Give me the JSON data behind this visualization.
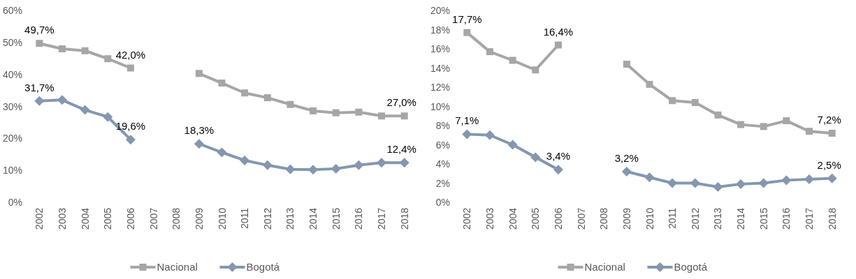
{
  "chart_data": [
    {
      "type": "line",
      "categories": [
        "2002",
        "2003",
        "2004",
        "2005",
        "2006",
        "2007",
        "2008",
        "2009",
        "2010",
        "2011",
        "2012",
        "2013",
        "2014",
        "2015",
        "2016",
        "2017",
        "2018"
      ],
      "ylim": [
        0,
        60
      ],
      "yticks": [
        {
          "value": 0,
          "label": "0%"
        },
        {
          "value": 10,
          "label": "10%"
        },
        {
          "value": 20,
          "label": "20%"
        },
        {
          "value": 30,
          "label": "30%"
        },
        {
          "value": 40,
          "label": "40%"
        },
        {
          "value": 50,
          "label": "50%"
        },
        {
          "value": 60,
          "label": "60%"
        }
      ],
      "legend": "bottom",
      "line_style": "solid",
      "series": [
        {
          "name": "Nacional",
          "color": "#a6a6a6",
          "marker": "square",
          "values": [
            49.7,
            48.0,
            47.4,
            44.9,
            42.0,
            null,
            null,
            40.3,
            37.3,
            34.2,
            32.7,
            30.6,
            28.6,
            28.0,
            28.2,
            27.0,
            27.0
          ],
          "value_labels": [
            "49,7%",
            null,
            null,
            null,
            "42,0%",
            null,
            null,
            null,
            null,
            null,
            null,
            null,
            null,
            null,
            null,
            null,
            "27,0%"
          ]
        },
        {
          "name": "Bogotá",
          "color": "#8497b0",
          "marker": "diamond",
          "values": [
            31.7,
            32.0,
            28.9,
            26.7,
            19.6,
            null,
            null,
            18.3,
            15.6,
            13.1,
            11.6,
            10.3,
            10.2,
            10.5,
            11.6,
            12.4,
            12.4
          ],
          "value_labels": [
            "31,7%",
            null,
            null,
            null,
            "19,6%",
            null,
            null,
            "18,3%",
            null,
            null,
            null,
            null,
            null,
            null,
            null,
            null,
            "12,4%"
          ]
        }
      ]
    },
    {
      "type": "line",
      "categories": [
        "2002",
        "2003",
        "2004",
        "2005",
        "2006",
        "2007",
        "2008",
        "2009",
        "2010",
        "2011",
        "2012",
        "2013",
        "2014",
        "2015",
        "2016",
        "2017",
        "2018"
      ],
      "ylim": [
        0,
        20
      ],
      "yticks": [
        {
          "value": 0,
          "label": "0%"
        },
        {
          "value": 2,
          "label": "2%"
        },
        {
          "value": 4,
          "label": "4%"
        },
        {
          "value": 6,
          "label": "6%"
        },
        {
          "value": 8,
          "label": "8%"
        },
        {
          "value": 10,
          "label": "10%"
        },
        {
          "value": 12,
          "label": "12%"
        },
        {
          "value": 14,
          "label": "14%"
        },
        {
          "value": 16,
          "label": "16%"
        },
        {
          "value": 18,
          "label": "18%"
        },
        {
          "value": 20,
          "label": "20%"
        }
      ],
      "legend": "bottom",
      "line_style": "solid",
      "series": [
        {
          "name": "Nacional",
          "color": "#a6a6a6",
          "marker": "square",
          "values": [
            17.7,
            15.7,
            14.8,
            13.8,
            16.4,
            null,
            null,
            14.4,
            12.3,
            10.6,
            10.4,
            9.1,
            8.1,
            7.9,
            8.5,
            7.4,
            7.2
          ],
          "value_labels": [
            "17,7%",
            null,
            null,
            null,
            "16,4%",
            null,
            null,
            null,
            null,
            null,
            null,
            null,
            null,
            null,
            null,
            null,
            "7,2%"
          ]
        },
        {
          "name": "Bogotá",
          "color": "#8497b0",
          "marker": "diamond",
          "values": [
            7.1,
            7.0,
            6.0,
            4.7,
            3.4,
            null,
            null,
            3.2,
            2.6,
            2.0,
            2.0,
            1.6,
            1.9,
            2.0,
            2.3,
            2.4,
            2.5
          ],
          "value_labels": [
            "7,1%",
            null,
            null,
            null,
            "3,4%",
            null,
            null,
            "3,2%",
            null,
            null,
            null,
            null,
            null,
            null,
            null,
            null,
            "2,5%"
          ]
        }
      ]
    }
  ]
}
